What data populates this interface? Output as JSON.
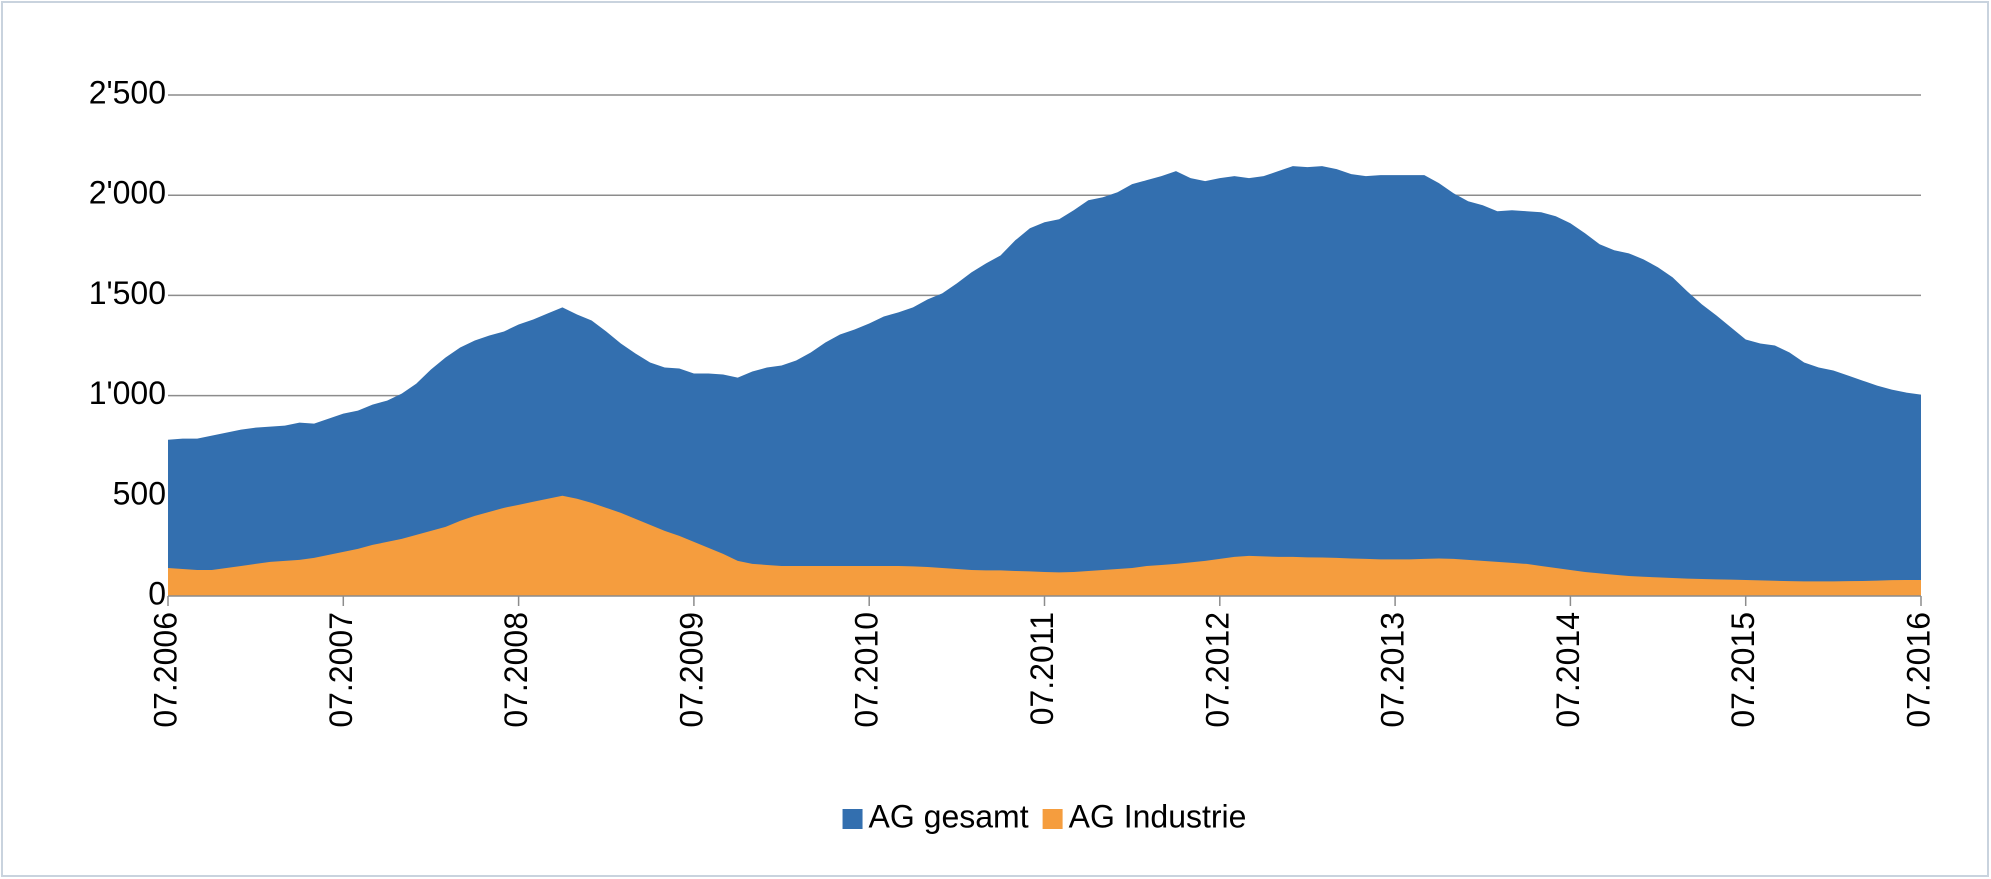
{
  "chart_data": {
    "type": "area",
    "categories": [
      "07.2006",
      null,
      null,
      null,
      null,
      null,
      null,
      null,
      null,
      null,
      null,
      null,
      "07.2007",
      null,
      null,
      null,
      null,
      null,
      null,
      null,
      null,
      null,
      null,
      null,
      "07.2008",
      null,
      null,
      null,
      null,
      null,
      null,
      null,
      null,
      null,
      null,
      null,
      "07.2009",
      null,
      null,
      null,
      null,
      null,
      null,
      null,
      null,
      null,
      null,
      null,
      "07.2010",
      null,
      null,
      null,
      null,
      null,
      null,
      null,
      null,
      null,
      null,
      null,
      "07.2011",
      null,
      null,
      null,
      null,
      null,
      null,
      null,
      null,
      null,
      null,
      null,
      "07.2012",
      null,
      null,
      null,
      null,
      null,
      null,
      null,
      null,
      null,
      null,
      null,
      "07.2013",
      null,
      null,
      null,
      null,
      null,
      null,
      null,
      null,
      null,
      null,
      null,
      "07.2014",
      null,
      null,
      null,
      null,
      null,
      null,
      null,
      null,
      null,
      null,
      null,
      "07.2015",
      null,
      null,
      null,
      null,
      null,
      null,
      null,
      null,
      null,
      null,
      null,
      "07.2016"
    ],
    "series": [
      {
        "name": "AG gesamt",
        "color": "#336faf",
        "values": [
          780,
          785,
          785,
          800,
          815,
          830,
          840,
          845,
          850,
          865,
          860,
          885,
          910,
          925,
          955,
          975,
          1010,
          1060,
          1130,
          1190,
          1240,
          1275,
          1300,
          1320,
          1355,
          1380,
          1410,
          1440,
          1405,
          1375,
          1320,
          1260,
          1210,
          1165,
          1140,
          1135,
          1110,
          1110,
          1105,
          1090,
          1120,
          1140,
          1150,
          1175,
          1215,
          1265,
          1305,
          1330,
          1360,
          1395,
          1415,
          1440,
          1480,
          1510,
          1560,
          1615,
          1660,
          1700,
          1775,
          1835,
          1865,
          1880,
          1925,
          1975,
          1990,
          2015,
          2055,
          2075,
          2095,
          2120,
          2085,
          2070,
          2085,
          2095,
          2085,
          2095,
          2120,
          2145,
          2140,
          2145,
          2130,
          2105,
          2095,
          2100,
          2100,
          2100,
          2100,
          2060,
          2010,
          1970,
          1950,
          1920,
          1925,
          1920,
          1915,
          1895,
          1860,
          1810,
          1755,
          1725,
          1710,
          1680,
          1640,
          1590,
          1520,
          1455,
          1400,
          1340,
          1280,
          1260,
          1250,
          1215,
          1165,
          1140,
          1125,
          1100,
          1075,
          1050,
          1030,
          1015,
          1005
        ]
      },
      {
        "name": "AG Industrie",
        "color": "#f59d3e",
        "values": [
          140,
          135,
          130,
          130,
          140,
          150,
          160,
          170,
          175,
          180,
          190,
          205,
          220,
          235,
          255,
          270,
          285,
          305,
          325,
          345,
          375,
          400,
          420,
          440,
          455,
          470,
          485,
          500,
          485,
          465,
          440,
          415,
          385,
          355,
          325,
          300,
          270,
          240,
          210,
          175,
          160,
          155,
          150,
          150,
          150,
          150,
          150,
          150,
          150,
          150,
          150,
          148,
          145,
          140,
          135,
          130,
          128,
          128,
          125,
          123,
          120,
          118,
          120,
          125,
          130,
          135,
          140,
          150,
          155,
          160,
          168,
          175,
          185,
          195,
          200,
          198,
          195,
          195,
          193,
          192,
          190,
          187,
          185,
          183,
          183,
          183,
          185,
          187,
          185,
          180,
          175,
          170,
          165,
          160,
          150,
          140,
          130,
          120,
          113,
          106,
          100,
          96,
          93,
          90,
          87,
          85,
          83,
          82,
          80,
          78,
          76,
          74,
          73,
          73,
          73,
          74,
          75,
          77,
          79,
          80,
          80
        ]
      }
    ],
    "ylim": [
      0,
      2500
    ],
    "yticks": [
      0,
      500,
      {
        "value": 1000,
        "label": "1'000"
      },
      {
        "value": 1500,
        "label": "1'500"
      },
      {
        "value": 2000,
        "label": "2'000"
      },
      {
        "value": 2500,
        "label": "2'500"
      }
    ],
    "grid": true,
    "legend": "bottom"
  }
}
